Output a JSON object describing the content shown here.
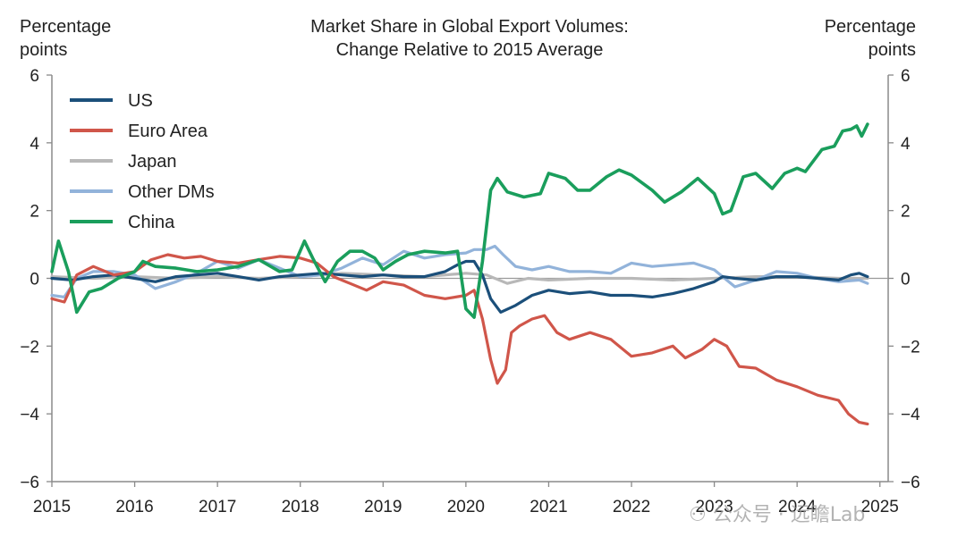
{
  "chart_data": {
    "type": "line",
    "title": "Market Share in Global Export Volumes:",
    "subtitle": "Change Relative to 2015 Average",
    "ylabel_left": [
      "Percentage",
      "points"
    ],
    "ylabel_right": [
      "Percentage",
      "points"
    ],
    "xlim": [
      2015,
      2025.1
    ],
    "ylim": [
      -6,
      6
    ],
    "yticks": [
      6,
      4,
      2,
      0,
      -2,
      -4,
      -6
    ],
    "ytick_labels_left": [
      "6",
      "4",
      "2",
      "0",
      "−2",
      "−4",
      "−6"
    ],
    "ytick_labels_right": [
      "6",
      "4",
      "2",
      "0",
      "−2",
      "−4",
      "−6"
    ],
    "xticks": [
      2015,
      2016,
      2017,
      2018,
      2019,
      2020,
      2021,
      2022,
      2023,
      2024,
      2025
    ],
    "xtick_labels": [
      "2015",
      "2016",
      "2017",
      "2018",
      "2019",
      "2020",
      "2021",
      "2022",
      "2023",
      "2024",
      "2025"
    ],
    "legend_position": "top-left",
    "series": [
      {
        "name": "US",
        "color": "#1b4f7a",
        "points": [
          [
            2015.0,
            0.0
          ],
          [
            2015.25,
            -0.05
          ],
          [
            2015.5,
            0.05
          ],
          [
            2015.75,
            0.1
          ],
          [
            2016.0,
            0.0
          ],
          [
            2016.25,
            -0.1
          ],
          [
            2016.5,
            0.05
          ],
          [
            2016.75,
            0.1
          ],
          [
            2017.0,
            0.15
          ],
          [
            2017.25,
            0.05
          ],
          [
            2017.5,
            -0.05
          ],
          [
            2017.75,
            0.05
          ],
          [
            2018.0,
            0.1
          ],
          [
            2018.25,
            0.15
          ],
          [
            2018.5,
            0.1
          ],
          [
            2018.75,
            0.05
          ],
          [
            2019.0,
            0.1
          ],
          [
            2019.25,
            0.05
          ],
          [
            2019.5,
            0.05
          ],
          [
            2019.75,
            0.2
          ],
          [
            2019.9,
            0.4
          ],
          [
            2020.0,
            0.5
          ],
          [
            2020.1,
            0.5
          ],
          [
            2020.2,
            0.1
          ],
          [
            2020.3,
            -0.6
          ],
          [
            2020.42,
            -1.0
          ],
          [
            2020.6,
            -0.8
          ],
          [
            2020.8,
            -0.5
          ],
          [
            2021.0,
            -0.35
          ],
          [
            2021.25,
            -0.45
          ],
          [
            2021.5,
            -0.4
          ],
          [
            2021.75,
            -0.5
          ],
          [
            2022.0,
            -0.5
          ],
          [
            2022.25,
            -0.55
          ],
          [
            2022.5,
            -0.45
          ],
          [
            2022.75,
            -0.3
          ],
          [
            2023.0,
            -0.1
          ],
          [
            2023.1,
            0.05
          ],
          [
            2023.25,
            0.0
          ],
          [
            2023.5,
            -0.05
          ],
          [
            2023.75,
            0.05
          ],
          [
            2024.0,
            0.05
          ],
          [
            2024.25,
            0.0
          ],
          [
            2024.5,
            -0.05
          ],
          [
            2024.65,
            0.1
          ],
          [
            2024.75,
            0.15
          ],
          [
            2024.85,
            0.05
          ]
        ]
      },
      {
        "name": "Euro Area",
        "color": "#d0564a",
        "points": [
          [
            2015.0,
            -0.6
          ],
          [
            2015.15,
            -0.7
          ],
          [
            2015.3,
            0.1
          ],
          [
            2015.5,
            0.35
          ],
          [
            2015.75,
            0.1
          ],
          [
            2016.0,
            0.2
          ],
          [
            2016.2,
            0.55
          ],
          [
            2016.4,
            0.7
          ],
          [
            2016.6,
            0.6
          ],
          [
            2016.8,
            0.65
          ],
          [
            2017.0,
            0.5
          ],
          [
            2017.25,
            0.45
          ],
          [
            2017.5,
            0.55
          ],
          [
            2017.75,
            0.65
          ],
          [
            2018.0,
            0.6
          ],
          [
            2018.2,
            0.45
          ],
          [
            2018.4,
            0.05
          ],
          [
            2018.6,
            -0.15
          ],
          [
            2018.8,
            -0.35
          ],
          [
            2019.0,
            -0.1
          ],
          [
            2019.25,
            -0.2
          ],
          [
            2019.5,
            -0.5
          ],
          [
            2019.75,
            -0.6
          ],
          [
            2020.0,
            -0.5
          ],
          [
            2020.1,
            -0.35
          ],
          [
            2020.2,
            -1.2
          ],
          [
            2020.3,
            -2.4
          ],
          [
            2020.38,
            -3.1
          ],
          [
            2020.48,
            -2.7
          ],
          [
            2020.55,
            -1.6
          ],
          [
            2020.65,
            -1.4
          ],
          [
            2020.8,
            -1.2
          ],
          [
            2020.95,
            -1.1
          ],
          [
            2021.1,
            -1.6
          ],
          [
            2021.25,
            -1.8
          ],
          [
            2021.5,
            -1.6
          ],
          [
            2021.75,
            -1.8
          ],
          [
            2022.0,
            -2.3
          ],
          [
            2022.25,
            -2.2
          ],
          [
            2022.5,
            -2.0
          ],
          [
            2022.65,
            -2.35
          ],
          [
            2022.85,
            -2.1
          ],
          [
            2023.0,
            -1.8
          ],
          [
            2023.15,
            -2.0
          ],
          [
            2023.3,
            -2.6
          ],
          [
            2023.5,
            -2.65
          ],
          [
            2023.75,
            -3.0
          ],
          [
            2024.0,
            -3.2
          ],
          [
            2024.25,
            -3.45
          ],
          [
            2024.5,
            -3.6
          ],
          [
            2024.62,
            -4.0
          ],
          [
            2024.75,
            -4.25
          ],
          [
            2024.85,
            -4.3
          ]
        ]
      },
      {
        "name": "Japan",
        "color": "#b8b8b8",
        "points": [
          [
            2015.0,
            0.05
          ],
          [
            2015.5,
            0.0
          ],
          [
            2016.0,
            0.05
          ],
          [
            2016.5,
            0.0
          ],
          [
            2017.0,
            0.05
          ],
          [
            2017.5,
            0.0
          ],
          [
            2018.0,
            0.05
          ],
          [
            2018.5,
            0.15
          ],
          [
            2019.0,
            0.1
          ],
          [
            2019.5,
            0.05
          ],
          [
            2020.0,
            0.15
          ],
          [
            2020.25,
            0.1
          ],
          [
            2020.5,
            -0.15
          ],
          [
            2020.75,
            0.0
          ],
          [
            2021.0,
            -0.05
          ],
          [
            2021.5,
            0.0
          ],
          [
            2022.0,
            0.0
          ],
          [
            2022.5,
            -0.05
          ],
          [
            2023.0,
            0.0
          ],
          [
            2023.5,
            0.05
          ],
          [
            2024.0,
            0.05
          ],
          [
            2024.5,
            0.0
          ],
          [
            2024.85,
            0.0
          ]
        ]
      },
      {
        "name": "Other DMs",
        "color": "#92b3da",
        "points": [
          [
            2015.0,
            -0.5
          ],
          [
            2015.15,
            -0.55
          ],
          [
            2015.3,
            0.0
          ],
          [
            2015.5,
            0.2
          ],
          [
            2015.75,
            0.2
          ],
          [
            2016.0,
            0.1
          ],
          [
            2016.25,
            -0.3
          ],
          [
            2016.5,
            -0.1
          ],
          [
            2016.75,
            0.15
          ],
          [
            2017.0,
            0.5
          ],
          [
            2017.25,
            0.3
          ],
          [
            2017.5,
            0.55
          ],
          [
            2017.75,
            0.3
          ],
          [
            2018.0,
            0.05
          ],
          [
            2018.25,
            0.1
          ],
          [
            2018.5,
            0.3
          ],
          [
            2018.75,
            0.6
          ],
          [
            2019.0,
            0.4
          ],
          [
            2019.25,
            0.8
          ],
          [
            2019.5,
            0.6
          ],
          [
            2019.75,
            0.7
          ],
          [
            2020.0,
            0.75
          ],
          [
            2020.1,
            0.85
          ],
          [
            2020.25,
            0.85
          ],
          [
            2020.35,
            0.95
          ],
          [
            2020.45,
            0.7
          ],
          [
            2020.6,
            0.35
          ],
          [
            2020.8,
            0.25
          ],
          [
            2021.0,
            0.35
          ],
          [
            2021.25,
            0.2
          ],
          [
            2021.5,
            0.2
          ],
          [
            2021.75,
            0.15
          ],
          [
            2022.0,
            0.45
          ],
          [
            2022.25,
            0.35
          ],
          [
            2022.5,
            0.4
          ],
          [
            2022.75,
            0.45
          ],
          [
            2023.0,
            0.25
          ],
          [
            2023.25,
            -0.25
          ],
          [
            2023.5,
            -0.05
          ],
          [
            2023.75,
            0.2
          ],
          [
            2024.0,
            0.15
          ],
          [
            2024.25,
            0.0
          ],
          [
            2024.5,
            -0.1
          ],
          [
            2024.75,
            -0.05
          ],
          [
            2024.85,
            -0.15
          ]
        ]
      },
      {
        "name": "China",
        "color": "#1a9e5c",
        "points": [
          [
            2015.0,
            0.2
          ],
          [
            2015.08,
            1.1
          ],
          [
            2015.2,
            0.2
          ],
          [
            2015.3,
            -1.0
          ],
          [
            2015.45,
            -0.4
          ],
          [
            2015.6,
            -0.3
          ],
          [
            2015.8,
            0.0
          ],
          [
            2016.0,
            0.2
          ],
          [
            2016.1,
            0.5
          ],
          [
            2016.25,
            0.35
          ],
          [
            2016.5,
            0.3
          ],
          [
            2016.75,
            0.2
          ],
          [
            2017.0,
            0.25
          ],
          [
            2017.25,
            0.35
          ],
          [
            2017.5,
            0.55
          ],
          [
            2017.75,
            0.2
          ],
          [
            2017.9,
            0.25
          ],
          [
            2018.05,
            1.1
          ],
          [
            2018.15,
            0.6
          ],
          [
            2018.3,
            -0.1
          ],
          [
            2018.45,
            0.5
          ],
          [
            2018.6,
            0.8
          ],
          [
            2018.75,
            0.8
          ],
          [
            2018.9,
            0.6
          ],
          [
            2019.0,
            0.25
          ],
          [
            2019.15,
            0.5
          ],
          [
            2019.3,
            0.7
          ],
          [
            2019.5,
            0.8
          ],
          [
            2019.75,
            0.75
          ],
          [
            2019.9,
            0.8
          ],
          [
            2020.0,
            -0.9
          ],
          [
            2020.1,
            -1.15
          ],
          [
            2020.2,
            0.5
          ],
          [
            2020.3,
            2.6
          ],
          [
            2020.38,
            2.95
          ],
          [
            2020.5,
            2.55
          ],
          [
            2020.7,
            2.4
          ],
          [
            2020.9,
            2.5
          ],
          [
            2021.0,
            3.1
          ],
          [
            2021.2,
            2.95
          ],
          [
            2021.35,
            2.6
          ],
          [
            2021.5,
            2.6
          ],
          [
            2021.7,
            3.0
          ],
          [
            2021.85,
            3.2
          ],
          [
            2022.0,
            3.05
          ],
          [
            2022.25,
            2.6
          ],
          [
            2022.4,
            2.25
          ],
          [
            2022.6,
            2.55
          ],
          [
            2022.8,
            2.95
          ],
          [
            2023.0,
            2.5
          ],
          [
            2023.1,
            1.9
          ],
          [
            2023.2,
            2.0
          ],
          [
            2023.35,
            3.0
          ],
          [
            2023.5,
            3.1
          ],
          [
            2023.7,
            2.65
          ],
          [
            2023.85,
            3.1
          ],
          [
            2024.0,
            3.25
          ],
          [
            2024.1,
            3.15
          ],
          [
            2024.3,
            3.8
          ],
          [
            2024.45,
            3.9
          ],
          [
            2024.55,
            4.35
          ],
          [
            2024.65,
            4.4
          ],
          [
            2024.72,
            4.5
          ],
          [
            2024.78,
            4.2
          ],
          [
            2024.85,
            4.55
          ]
        ]
      }
    ]
  }
}
